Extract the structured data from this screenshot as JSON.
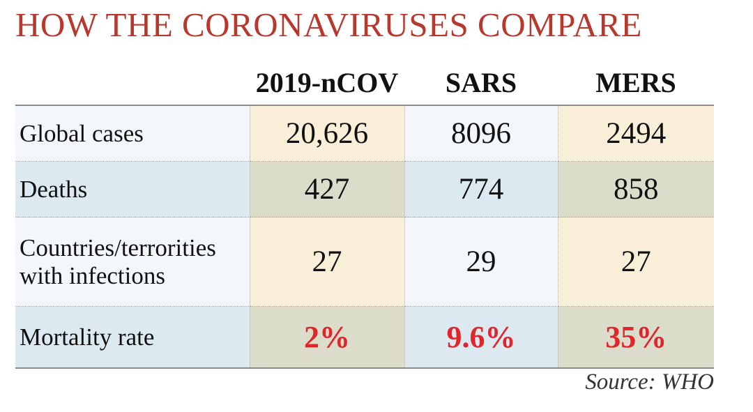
{
  "chart_data": {
    "type": "table",
    "title": "HOW THE CORONAVIRUSES COMPARE",
    "columns": [
      "2019-nCOV",
      "SARS",
      "MERS"
    ],
    "rows": [
      {
        "label": "Global cases",
        "values": [
          "20,626",
          "8096",
          "2494"
        ]
      },
      {
        "label": "Deaths",
        "values": [
          "427",
          "774",
          "858"
        ]
      },
      {
        "label_lines": [
          "Countries/terrorities",
          "with infections"
        ],
        "values": [
          "27",
          "29",
          "27"
        ]
      },
      {
        "label": "Mortality rate",
        "values": [
          "2%",
          "9.6%",
          "35%"
        ]
      }
    ],
    "source": "Source: WHO",
    "colors": {
      "title": "#b8382e",
      "mortality_values": "#e0252b",
      "cell_cream": "#f9efd9",
      "cell_pale": "#f3f6fa",
      "cell_blue": "#dde9f0",
      "cell_olive": "#dcdccb"
    }
  }
}
